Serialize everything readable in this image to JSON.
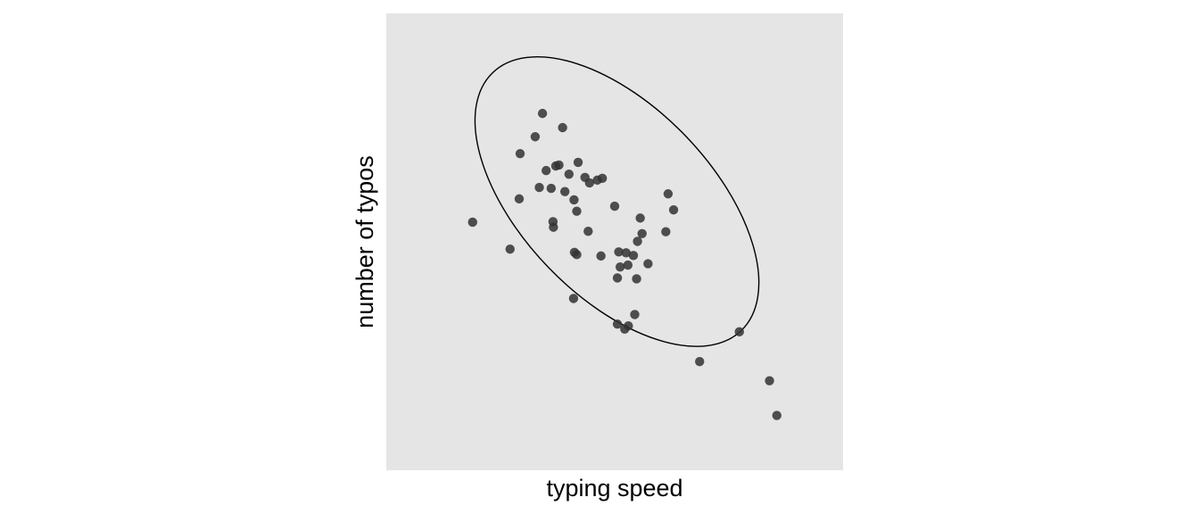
{
  "chart_data": {
    "type": "scatter",
    "title": "",
    "xlabel": "typing speed",
    "ylabel": "number of typos",
    "xlim": [
      0,
      100
    ],
    "ylim": [
      0,
      100
    ],
    "grid": false,
    "legend": "none",
    "ticks_shown": false,
    "point_color": "#333333",
    "panel_color": "#E5E5E5",
    "ellipse_color": "#000000",
    "series": [
      {
        "points": [
          [
            18.9,
            54.3
          ],
          [
            27.1,
            48.4
          ],
          [
            29.1,
            59.4
          ],
          [
            29.3,
            69.3
          ],
          [
            32.6,
            73.0
          ],
          [
            34.2,
            78.1
          ],
          [
            33.5,
            61.9
          ],
          [
            35.0,
            65.6
          ],
          [
            36.1,
            61.7
          ],
          [
            37.1,
            66.6
          ],
          [
            37.8,
            66.8
          ],
          [
            36.5,
            54.4
          ],
          [
            36.6,
            53.2
          ],
          [
            39.1,
            61.0
          ],
          [
            38.6,
            75.0
          ],
          [
            40.0,
            64.8
          ],
          [
            41.7,
            56.7
          ],
          [
            41.1,
            59.2
          ],
          [
            42.0,
            67.4
          ],
          [
            43.5,
            64.1
          ],
          [
            44.2,
            52.3
          ],
          [
            41.2,
            47.7
          ],
          [
            41.7,
            47.2
          ],
          [
            44.5,
            62.9
          ],
          [
            46.2,
            63.5
          ],
          [
            47.3,
            63.9
          ],
          [
            47.0,
            46.9
          ],
          [
            41.0,
            37.6
          ],
          [
            50.0,
            57.8
          ],
          [
            50.9,
            47.8
          ],
          [
            50.6,
            42.1
          ],
          [
            52.5,
            47.6
          ],
          [
            51.2,
            44.5
          ],
          [
            52.9,
            44.9
          ],
          [
            54.1,
            47.0
          ],
          [
            55.6,
            55.2
          ],
          [
            55.0,
            50.1
          ],
          [
            54.8,
            41.9
          ],
          [
            56.0,
            51.8
          ],
          [
            57.3,
            45.2
          ],
          [
            53.0,
            31.6
          ],
          [
            54.4,
            34.1
          ],
          [
            50.6,
            32.0
          ],
          [
            52.2,
            30.9
          ],
          [
            61.7,
            60.5
          ],
          [
            61.2,
            52.2
          ],
          [
            62.9,
            57.0
          ],
          [
            68.6,
            23.8
          ],
          [
            77.3,
            30.3
          ],
          [
            83.9,
            19.6
          ],
          [
            85.5,
            12.0
          ]
        ]
      }
    ],
    "ellipse": {
      "center": [
        50.5,
        58.8
      ],
      "semi_axes_data": [
        39.2,
        20.8
      ],
      "tilt_deg": -46
    }
  }
}
